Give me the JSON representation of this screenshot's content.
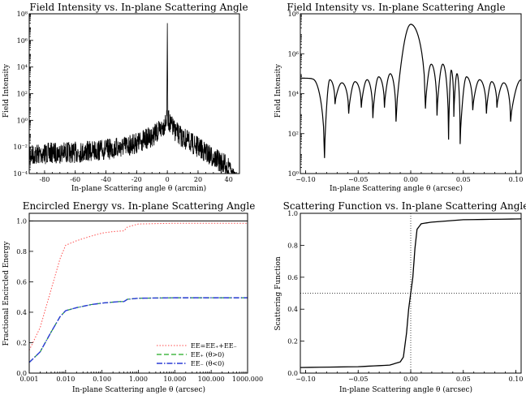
{
  "panels": [
    {
      "title": "Field Intensity vs. In-plane Scattering Angle",
      "xlabel": "In-plane Scattering angle θ (arcmin)",
      "ylabel": "Field Intensity"
    },
    {
      "title": "Field Intensity vs. In-plane Scattering Angle",
      "xlabel": "In-plane Scattering angle θ (arcsec)",
      "ylabel": "Field Intensity"
    },
    {
      "title": "Encircled Energy vs. In-plane Scattering Angle",
      "xlabel": "In-plane Scattering angle θ (arcsec)",
      "ylabel": "Fractional Encircled Energy"
    },
    {
      "title": "Scattering Function vs. In-plane Scattering Angle",
      "xlabel": "In-plane Scattering angle θ (arcsec)",
      "ylabel": "Scattering Function"
    }
  ],
  "chart_data": [
    {
      "type": "line",
      "title": "Field Intensity vs. In-plane Scattering Angle",
      "xlabel": "In-plane Scattering angle θ (arcmin)",
      "ylabel": "Field Intensity",
      "xlim": [
        -90,
        47
      ],
      "ylim": [
        0.0001,
        100000000
      ],
      "yscale": "log",
      "xticks": [
        -80,
        -60,
        -40,
        -20,
        0,
        20,
        40
      ],
      "yticks": [
        "10⁻⁴",
        "10⁻²",
        "10⁰",
        "10²",
        "10⁴",
        "10⁶",
        "10⁸"
      ],
      "series": [
        {
          "x": [
            -90,
            -80,
            -70,
            -60,
            -50,
            -40,
            -30,
            -20,
            -10,
            -5,
            -2,
            -1,
            0,
            1,
            2,
            5,
            10,
            20,
            30,
            40,
            45
          ],
          "y": [
            0.008,
            0.01,
            0.012,
            0.012,
            0.015,
            0.02,
            0.03,
            0.06,
            0.2,
            0.5,
            1.5,
            3,
            20000000,
            3,
            1.5,
            0.5,
            0.15,
            0.03,
            0.005,
            0.001,
            0.0001
          ]
        }
      ]
    },
    {
      "type": "line",
      "title": "Field Intensity vs. In-plane Scattering Angle",
      "xlabel": "In-plane Scattering angle θ (arcsec)",
      "ylabel": "Field Intensity",
      "xlim": [
        -0.105,
        0.105
      ],
      "ylim": [
        1,
        100000000
      ],
      "yscale": "log",
      "xticks": [
        -0.1,
        -0.05,
        0.0,
        0.05,
        0.1
      ],
      "yticks": [
        "10⁰",
        "10²",
        "10⁴",
        "10⁶",
        "10⁸"
      ],
      "main_lobe_peak": 30000000,
      "side_lobe_peaks": [
        50000,
        35000,
        40000,
        50000,
        70000,
        100000,
        150000,
        300000,
        300000,
        150000,
        100000,
        70000,
        50000,
        40000,
        35000,
        50000
      ],
      "nulls_x": [
        -0.082,
        -0.072,
        -0.059,
        -0.047,
        -0.036,
        -0.025,
        -0.014,
        0.014,
        0.025,
        0.036,
        0.041,
        0.047,
        0.059,
        0.072,
        0.082,
        0.095
      ],
      "nulls_y": [
        6,
        3000,
        1000,
        2000,
        600,
        2000,
        400,
        1800,
        800,
        50,
        700,
        30,
        1500,
        1000,
        2000,
        400
      ]
    },
    {
      "type": "line",
      "title": "Encircled Energy vs. In-plane Scattering Angle",
      "xlabel": "In-plane Scattering angle θ (arcsec)",
      "ylabel": "Fractional Encircled Energy",
      "xscale": "log",
      "xlim": [
        0.001,
        1000
      ],
      "ylim": [
        0,
        1.05
      ],
      "xticks": [
        "0.001",
        "0.010",
        "0.100",
        "1.000",
        "10.000",
        "100.000",
        "1000.000"
      ],
      "yticks": [
        "0.0",
        "0.2",
        "0.4",
        "0.6",
        "0.8",
        "1.0"
      ],
      "legend_placement": "bottom-right",
      "series": [
        {
          "name": "EE=EE₊+EE₋",
          "color": "#ff4d4d",
          "x": [
            0.001,
            0.002,
            0.004,
            0.007,
            0.01,
            0.02,
            0.05,
            0.1,
            0.2,
            0.4,
            0.5,
            1,
            10,
            1000
          ],
          "y": [
            0.15,
            0.3,
            0.55,
            0.75,
            0.84,
            0.87,
            0.9,
            0.92,
            0.93,
            0.935,
            0.96,
            0.98,
            0.985,
            0.985
          ]
        },
        {
          "name": "EE₊ (θ>0)",
          "color": "#22aa22",
          "x": [
            0.001,
            0.002,
            0.004,
            0.007,
            0.01,
            0.02,
            0.05,
            0.1,
            0.3,
            0.4,
            0.5,
            1,
            10,
            1000
          ],
          "y": [
            0.07,
            0.14,
            0.27,
            0.37,
            0.41,
            0.43,
            0.45,
            0.46,
            0.47,
            0.47,
            0.485,
            0.492,
            0.495,
            0.495
          ]
        },
        {
          "name": "EE₋ (θ<0)",
          "color": "#2a3bd6",
          "x": [
            0.001,
            0.002,
            0.004,
            0.007,
            0.01,
            0.02,
            0.05,
            0.1,
            0.3,
            0.4,
            0.5,
            1,
            10,
            1000
          ],
          "y": [
            0.07,
            0.14,
            0.27,
            0.37,
            0.41,
            0.43,
            0.45,
            0.46,
            0.47,
            0.47,
            0.485,
            0.492,
            0.495,
            0.495
          ]
        }
      ],
      "reference_line_y": 1.0
    },
    {
      "type": "line",
      "title": "Scattering Function vs. In-plane Scattering Angle",
      "xlabel": "In-plane Scattering angle θ (arcsec)",
      "ylabel": "Scattering Function",
      "xlim": [
        -0.105,
        0.105
      ],
      "ylim": [
        0,
        1.0
      ],
      "xticks": [
        "−0.10",
        "−0.05",
        "0.00",
        "0.05",
        "0.10"
      ],
      "yticks": [
        "0.0",
        "0.2",
        "0.4",
        "0.6",
        "0.8",
        "1.0"
      ],
      "series": [
        {
          "x": [
            -0.105,
            -0.05,
            -0.02,
            -0.01,
            -0.007,
            -0.004,
            -0.002,
            0,
            0.002,
            0.004,
            0.006,
            0.01,
            0.02,
            0.05,
            0.105
          ],
          "y": [
            0.035,
            0.04,
            0.05,
            0.07,
            0.1,
            0.25,
            0.4,
            0.5,
            0.6,
            0.78,
            0.9,
            0.935,
            0.945,
            0.96,
            0.965
          ]
        }
      ],
      "reference_lines": {
        "x": 0.0,
        "y": 0.5
      }
    }
  ]
}
